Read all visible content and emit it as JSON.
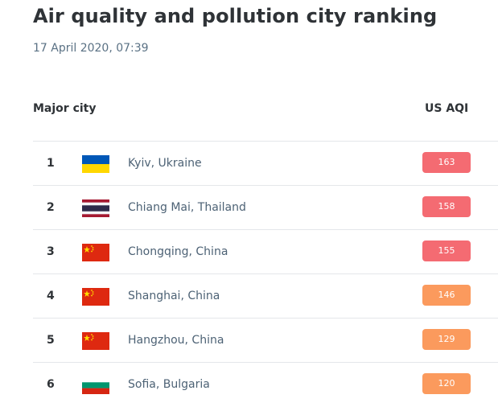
{
  "header": {
    "title": "Air quality and pollution city ranking",
    "timestamp": "17 April 2020, 07:39"
  },
  "table": {
    "columns": {
      "city": "Major city",
      "aqi": "US AQI"
    },
    "rows": [
      {
        "rank": "1",
        "flag": "ukraine-flag-icon",
        "city": "Kyiv, Ukraine",
        "aqi": "163",
        "color": "#f46b72"
      },
      {
        "rank": "2",
        "flag": "thailand-flag-icon",
        "city": "Chiang Mai, Thailand",
        "aqi": "158",
        "color": "#f46b72"
      },
      {
        "rank": "3",
        "flag": "china-flag-icon",
        "city": "Chongqing, China",
        "aqi": "155",
        "color": "#f46b72"
      },
      {
        "rank": "4",
        "flag": "china-flag-icon",
        "city": "Shanghai, China",
        "aqi": "146",
        "color": "#fb9a5d"
      },
      {
        "rank": "5",
        "flag": "china-flag-icon",
        "city": "Hangzhou, China",
        "aqi": "129",
        "color": "#fb9a5d"
      },
      {
        "rank": "6",
        "flag": "bulgaria-flag-icon",
        "city": "Sofia, Bulgaria",
        "aqi": "120",
        "color": "#fb9a5d"
      }
    ]
  }
}
